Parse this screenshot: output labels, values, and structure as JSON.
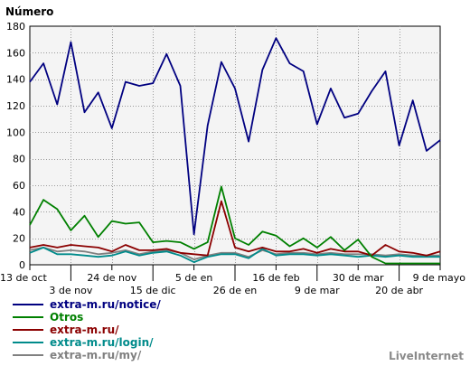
{
  "chart_data": {
    "type": "line",
    "ylabel": "Número",
    "ylim": [
      0,
      180
    ],
    "yticks": [
      0,
      20,
      40,
      60,
      80,
      100,
      120,
      140,
      160,
      180
    ],
    "grid": true,
    "legend_position": "bottom-left",
    "brand": "LiveInternet",
    "xtick_labels": [
      {
        "label": "13 de oct",
        "index": 0,
        "row": 1
      },
      {
        "label": "3 de nov",
        "index": 3,
        "row": 2
      },
      {
        "label": "24 de nov",
        "index": 6,
        "row": 1
      },
      {
        "label": "15 de dic",
        "index": 9,
        "row": 2
      },
      {
        "label": "5 de en",
        "index": 12,
        "row": 1
      },
      {
        "label": "26 de en",
        "index": 15,
        "row": 2
      },
      {
        "label": "16 de feb",
        "index": 18,
        "row": 1
      },
      {
        "label": "9 de mar",
        "index": 21,
        "row": 2
      },
      {
        "label": "30 de mar",
        "index": 24,
        "row": 1
      },
      {
        "label": "20 de abr",
        "index": 27,
        "row": 2
      },
      {
        "label": "9 de mayo",
        "index": 30,
        "row": 1
      }
    ],
    "n_points": 31,
    "series": [
      {
        "name": "extra-m.ru/notice/",
        "color": "#000080",
        "values": [
          138,
          152,
          121,
          168,
          115,
          130,
          103,
          138,
          135,
          137,
          159,
          135,
          23,
          105,
          153,
          133,
          93,
          147,
          171,
          152,
          146,
          106,
          133,
          111,
          114,
          131,
          146,
          90,
          124,
          86,
          94
        ]
      },
      {
        "name": "Otros",
        "color": "#008000",
        "values": [
          30,
          49,
          42,
          26,
          37,
          21,
          33,
          31,
          32,
          17,
          18,
          17,
          12,
          17,
          59,
          20,
          15,
          25,
          22,
          14,
          20,
          13,
          21,
          11,
          19,
          6,
          1,
          1,
          1,
          1,
          1
        ]
      },
      {
        "name": "extra-m.ru/",
        "color": "#8b0000",
        "values": [
          13,
          15,
          13,
          15,
          14,
          13,
          10,
          15,
          11,
          11,
          12,
          9,
          8,
          7,
          48,
          13,
          10,
          13,
          10,
          10,
          12,
          9,
          12,
          10,
          10,
          7,
          15,
          10,
          9,
          7,
          10
        ]
      },
      {
        "name": "extra-m.ru/login/",
        "color": "#008b8b",
        "values": [
          9,
          13,
          8,
          8,
          7,
          6,
          7,
          10,
          7,
          9,
          10,
          7,
          2,
          6,
          8,
          8,
          5,
          12,
          7,
          8,
          8,
          7,
          8,
          7,
          6,
          7,
          6,
          7,
          6,
          6,
          6
        ]
      },
      {
        "name": "extra-m.ru/my/",
        "color": "#808080",
        "values": [
          11,
          13,
          10,
          11,
          10,
          8,
          9,
          11,
          8,
          10,
          11,
          9,
          4,
          7,
          9,
          9,
          6,
          11,
          8,
          9,
          9,
          8,
          9,
          8,
          8,
          8,
          7,
          8,
          7,
          7,
          7
        ]
      }
    ]
  }
}
